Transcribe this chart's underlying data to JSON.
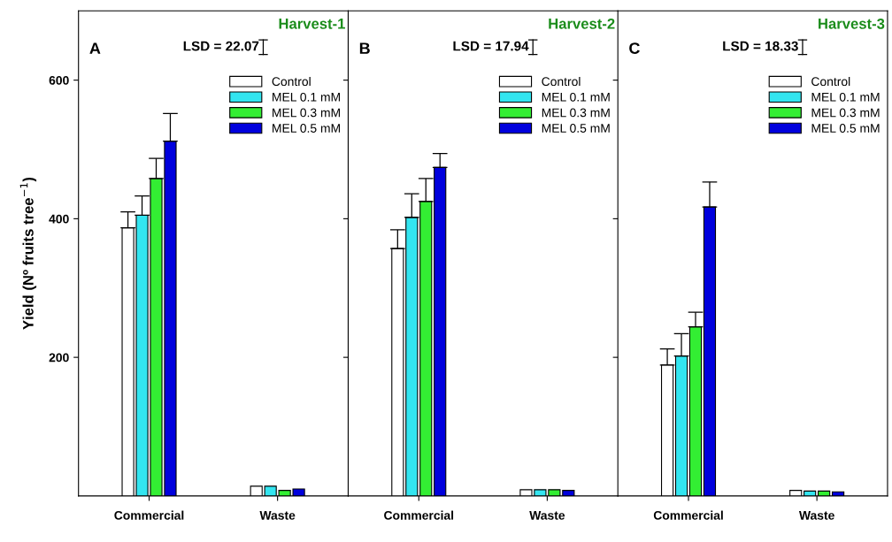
{
  "chart_data": [
    {
      "type": "bar",
      "title": "Harvest-1",
      "ylabel": "Yield (Nº fruits tree$^{−1}$)",
      "annotations": [
        "A",
        "LSD = 22.07"
      ],
      "categories": [
        "Commercial",
        "Waste"
      ],
      "ylim": [
        0,
        700
      ],
      "yticks": [
        200,
        400,
        600
      ],
      "legend": "top right",
      "series": [
        {
          "name": "Control",
          "color": "#ffffff",
          "values": [
            387,
            14
          ],
          "errors": [
            [
              387,
              410
            ],
            null
          ]
        },
        {
          "name": "MEL 0.1 mM",
          "color": "#33e5f0",
          "values": [
            405,
            14
          ],
          "errors": [
            [
              405,
              433
            ],
            null
          ]
        },
        {
          "name": "MEL 0.3 mM",
          "color": "#33ee33",
          "values": [
            458,
            8
          ],
          "errors": [
            [
              458,
              487
            ],
            null
          ]
        },
        {
          "name": "MEL 0.5 mM",
          "color": "#0000dd",
          "values": [
            512,
            10
          ],
          "errors": [
            [
              512,
              552
            ],
            null
          ]
        }
      ]
    },
    {
      "type": "bar",
      "title": "Harvest-2",
      "annotations": [
        "B",
        "LSD = 17.94"
      ],
      "categories": [
        "Commercial",
        "Waste"
      ],
      "ylim": [
        0,
        700
      ],
      "yticks": [
        200,
        400,
        600
      ],
      "tick_labels": "x",
      "legend": "top right",
      "series": [
        {
          "name": "Control",
          "color": "#ffffff",
          "values": [
            357,
            9
          ],
          "errors": [
            [
              357,
              384
            ],
            null
          ]
        },
        {
          "name": "MEL 0.1 mM",
          "color": "#33e5f0",
          "values": [
            402,
            9
          ],
          "errors": [
            [
              402,
              436
            ],
            null
          ]
        },
        {
          "name": "MEL 0.3 mM",
          "color": "#33ee33",
          "values": [
            425,
            9
          ],
          "errors": [
            [
              425,
              458
            ],
            null
          ]
        },
        {
          "name": "MEL 0.5 mM",
          "color": "#0000dd",
          "values": [
            474,
            8
          ],
          "errors": [
            [
              474,
              494
            ],
            null
          ]
        }
      ]
    },
    {
      "type": "bar",
      "title": "Harvest-3",
      "annotations": [
        "C",
        "LSD = 18.33"
      ],
      "categories": [
        "Commercial",
        "Waste"
      ],
      "ylim": [
        0,
        700
      ],
      "yticks": [
        200,
        400,
        600
      ],
      "tick_labels": "x",
      "legend": "top right",
      "series": [
        {
          "name": "Control",
          "color": "#ffffff",
          "values": [
            189,
            8
          ],
          "errors": [
            [
              189,
              212
            ],
            null
          ]
        },
        {
          "name": "MEL 0.1 mM",
          "color": "#33e5f0",
          "values": [
            202,
            7
          ],
          "errors": [
            [
              202,
              234
            ],
            null
          ]
        },
        {
          "name": "MEL 0.3 mM",
          "color": "#33ee33",
          "values": [
            244,
            7
          ],
          "errors": [
            [
              244,
              265
            ],
            null
          ]
        },
        {
          "name": "MEL 0.5 mM",
          "color": "#0000dd",
          "values": [
            417,
            6
          ],
          "errors": [
            [
              417,
              453
            ],
            null
          ]
        }
      ]
    }
  ]
}
